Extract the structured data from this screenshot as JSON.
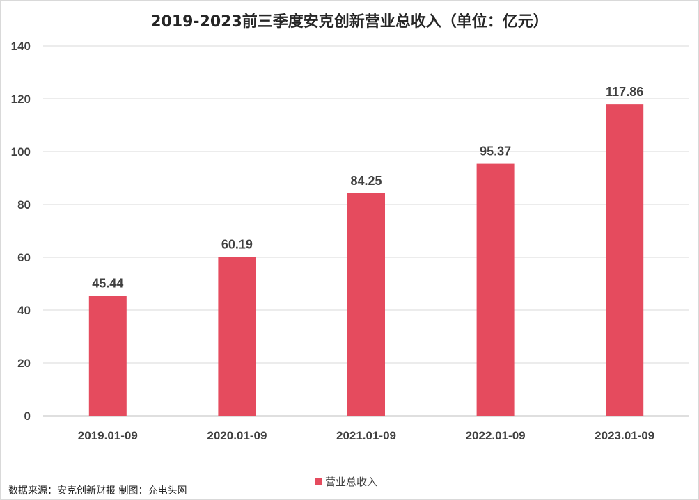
{
  "chart_data": {
    "type": "bar",
    "title": "2019-2023前三季度安克创新营业总收入（单位：亿元）",
    "categories": [
      "2019.01-09",
      "2020.01-09",
      "2021.01-09",
      "2022.01-09",
      "2023.01-09"
    ],
    "series": [
      {
        "name": "营业总收入",
        "values": [
          45.44,
          60.19,
          84.25,
          95.37,
          117.86
        ],
        "labels": [
          "45.44",
          "60.19",
          "84.25",
          "95.37",
          "117.86"
        ],
        "color": "#e54b5e"
      }
    ],
    "ylim": [
      0,
      140
    ],
    "yticks": [
      0,
      20,
      40,
      60,
      80,
      100,
      120,
      140
    ],
    "grid": true,
    "legend_position": "bottom"
  },
  "footer": {
    "source": "数据来源：安克创新财报  制图：充电头网"
  },
  "colors": {
    "bar": "#e54b5e",
    "grid": "#d9d9d9",
    "text": "#404040"
  }
}
